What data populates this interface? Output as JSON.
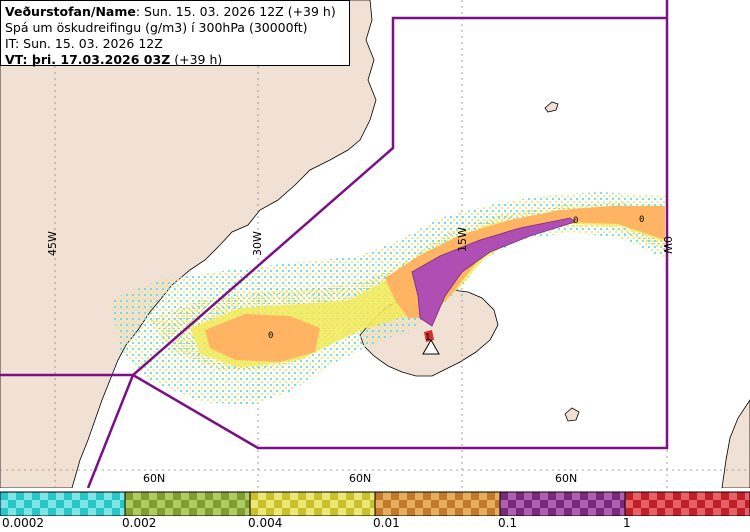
{
  "header": {
    "line1_bold": "Veðurstofan/Name",
    "line1_rest": ": Sun. 15. 03. 2026 12Z (+39 h)",
    "line2": "Spá um öskudreifingu (g/m3) í 300hPa (30000ft)",
    "line3": "IT: Sun. 15. 03. 2026 12Z",
    "line4_bold": "VT: þri. 17.03.2026 03Z",
    "line4_rest": " (+39 h)"
  },
  "map": {
    "longitude_labels": [
      "45W",
      "30W",
      "15W",
      "0W"
    ],
    "latitude_labels": [
      "60N",
      "60N",
      "60N"
    ],
    "contour_labels": [
      "0",
      "0",
      "0"
    ],
    "volcano_label": "1",
    "colors": {
      "sea": "#ffffff",
      "land": "#f1e1d4",
      "airspace": "#7b0f86",
      "ash_cyan": "#5ce0e6",
      "ash_green": "#a8d060",
      "ash_yellow": "#f2ea5a",
      "ash_orange": "#ffb463",
      "ash_purple": "#b04fb3",
      "ash_red": "#d32f2f"
    }
  },
  "legend": {
    "labels": [
      "0.0002",
      "0.002",
      "0.004",
      "0.01",
      "0.1",
      "1"
    ],
    "swatches": [
      {
        "color": "#28c8c8",
        "alt": "#7ee6e6"
      },
      {
        "color": "#7fa030",
        "alt": "#b0cc60"
      },
      {
        "color": "#c8c030",
        "alt": "#ece872"
      },
      {
        "color": "#c07a2a",
        "alt": "#e8ac60"
      },
      {
        "color": "#7a2a7a",
        "alt": "#b060b0"
      },
      {
        "color": "#c02028",
        "alt": "#e86068"
      }
    ]
  }
}
